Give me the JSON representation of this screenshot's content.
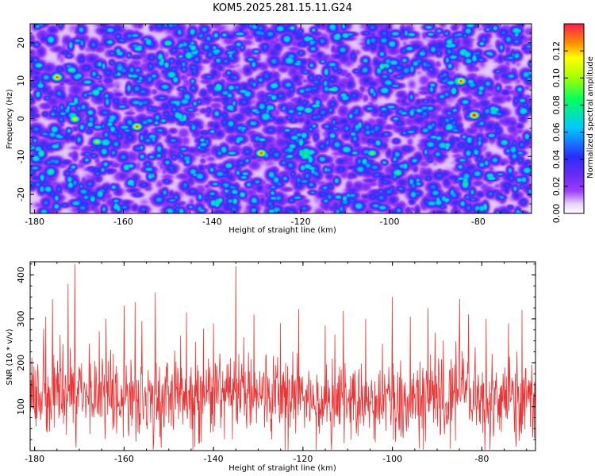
{
  "title": "KOM5.2025.281.15.11.G24",
  "chart_data": [
    {
      "type": "heatmap",
      "title": "KOM5.2025.281.15.11.G24",
      "xlabel": "Height of straight line (km)",
      "ylabel": "Frequency (Hz)",
      "xlim": [
        -181,
        -68
      ],
      "ylim": [
        -25,
        25
      ],
      "x_ticks": [
        -180,
        -160,
        -140,
        -120,
        -100,
        -80
      ],
      "x_tick_labels": [
        "-180",
        "-160",
        "-140",
        "-120",
        "-100",
        "-80"
      ],
      "y_ticks": [
        -20,
        -10,
        0,
        10,
        20
      ],
      "y_tick_labels": [
        "-20",
        "-10",
        "0",
        "10",
        "20"
      ],
      "colorbar": {
        "label": "Normalized spectral amplitude",
        "range": [
          0,
          0.14
        ],
        "ticks": [
          0,
          0.02,
          0.04,
          0.06,
          0.08,
          0.1,
          0.12
        ],
        "tick_labels": [
          "0.00",
          "0.02",
          "0.04",
          "0.06",
          "0.08",
          "0.10",
          "0.12"
        ]
      },
      "background_level": 0.035,
      "hot_spots": [
        {
          "x": -175,
          "y": 11,
          "value": 0.13
        },
        {
          "x": -171,
          "y": 0,
          "value": 0.11
        },
        {
          "x": -166,
          "y": -6,
          "value": 0.1
        },
        {
          "x": -157,
          "y": -2,
          "value": 0.13
        },
        {
          "x": -129,
          "y": -9,
          "value": 0.13
        },
        {
          "x": -84,
          "y": 10,
          "value": 0.13
        },
        {
          "x": -81,
          "y": 1,
          "value": 0.14
        },
        {
          "x": -104,
          "y": -9,
          "value": 0.09
        },
        {
          "x": -150,
          "y": 20,
          "value": 0.08
        },
        {
          "x": -110,
          "y": 22,
          "value": 0.07
        },
        {
          "x": -136,
          "y": 3,
          "value": 0.07
        },
        {
          "x": -92,
          "y": -3,
          "value": 0.06
        }
      ]
    },
    {
      "type": "line",
      "xlabel": "Height of straight line (km)",
      "ylabel": "SNR (10 * v/v)",
      "xlim": [
        -181,
        -68
      ],
      "ylim": [
        0,
        430
      ],
      "x_ticks": [
        -180,
        -160,
        -140,
        -120,
        -100,
        -80
      ],
      "x_tick_labels": [
        "-180",
        "-160",
        "-140",
        "-120",
        "-100",
        "-80"
      ],
      "y_ticks": [
        100,
        200,
        300,
        400
      ],
      "y_tick_labels": [
        "100",
        "200",
        "300",
        "400"
      ],
      "line_color": "#ee3333",
      "x_start": -181,
      "x_end": -68,
      "sample_count": 1200,
      "mean_level": 115,
      "peaks": [
        {
          "x": -171,
          "y": 425
        },
        {
          "x": -172.5,
          "y": 380
        },
        {
          "x": -135,
          "y": 420
        },
        {
          "x": -176,
          "y": 345
        },
        {
          "x": -153,
          "y": 360
        },
        {
          "x": -100,
          "y": 350
        },
        {
          "x": -85,
          "y": 345
        },
        {
          "x": -160,
          "y": 330
        },
        {
          "x": -92,
          "y": 325
        },
        {
          "x": -121,
          "y": 322
        },
        {
          "x": -146,
          "y": 315
        },
        {
          "x": -111,
          "y": 318
        },
        {
          "x": -71,
          "y": 320
        },
        {
          "x": -131,
          "y": 310
        },
        {
          "x": -83,
          "y": 310
        },
        {
          "x": -96,
          "y": 305
        },
        {
          "x": -177.5,
          "y": 305
        },
        {
          "x": -106,
          "y": 300
        },
        {
          "x": -164,
          "y": 300
        },
        {
          "x": -79,
          "y": 300
        },
        {
          "x": -156,
          "y": 295
        },
        {
          "x": -140,
          "y": 290
        },
        {
          "x": -125,
          "y": 290
        },
        {
          "x": -74,
          "y": 290
        },
        {
          "x": -115,
          "y": 285
        }
      ]
    }
  ]
}
